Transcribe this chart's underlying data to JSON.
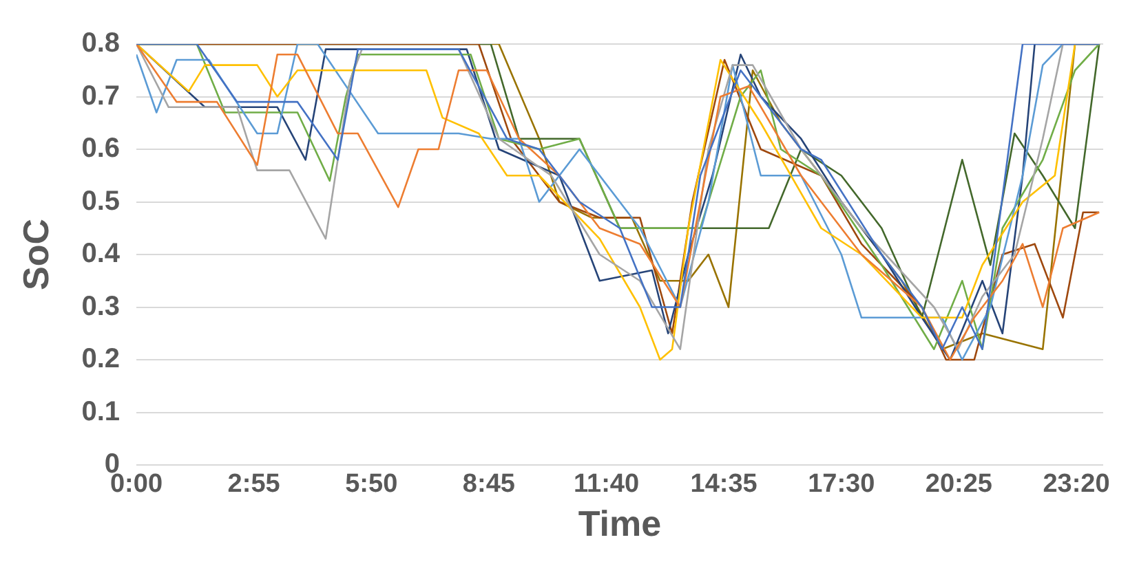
{
  "chart_data": {
    "type": "line",
    "xlabel": "Time",
    "ylabel": "SoC",
    "xlim": [
      0,
      24
    ],
    "xticks": [
      {
        "value": 0,
        "label": "0:00"
      },
      {
        "value": 2.9167,
        "label": "2:55"
      },
      {
        "value": 5.8333,
        "label": "5:50"
      },
      {
        "value": 8.75,
        "label": "8:45"
      },
      {
        "value": 11.6667,
        "label": "11:40"
      },
      {
        "value": 14.5833,
        "label": "14:35"
      },
      {
        "value": 17.5,
        "label": "17:30"
      },
      {
        "value": 20.4167,
        "label": "20:25"
      },
      {
        "value": 23.3333,
        "label": "23:20"
      }
    ],
    "ylim": [
      0,
      0.8
    ],
    "yticks": [
      0,
      0.1,
      0.2,
      0.3,
      0.4,
      0.5,
      0.6,
      0.7,
      0.8
    ],
    "grid": "y",
    "marker": "none",
    "line_style": "solid",
    "series": [
      {
        "color": "#4472c4",
        "x": [
          0,
          1.5,
          2.5,
          4,
          5,
          5.5,
          8,
          9.2,
          10,
          11,
          12,
          12.8,
          13.5,
          14,
          15,
          15.5,
          16.5,
          17,
          18.5,
          19.5,
          20,
          20.5,
          21,
          22,
          23.9
        ],
        "values": [
          0.8,
          0.8,
          0.69,
          0.69,
          0.58,
          0.79,
          0.79,
          0.62,
          0.6,
          0.5,
          0.45,
          0.3,
          0.3,
          0.55,
          0.75,
          0.7,
          0.6,
          0.58,
          0.4,
          0.3,
          0.22,
          0.3,
          0.22,
          0.8,
          0.8
        ]
      },
      {
        "color": "#ed7d31",
        "x": [
          0,
          1,
          2,
          3,
          3.5,
          4,
          5,
          5.5,
          6.5,
          7,
          7.5,
          8,
          8.7,
          9.5,
          10.5,
          11.5,
          12.5,
          13.5,
          14.5,
          15.2,
          16.5,
          18,
          19.5,
          20.2,
          20.8,
          21.5,
          22,
          22.5,
          23,
          23.9
        ],
        "values": [
          0.8,
          0.69,
          0.69,
          0.57,
          0.78,
          0.78,
          0.63,
          0.63,
          0.49,
          0.6,
          0.6,
          0.75,
          0.75,
          0.62,
          0.55,
          0.45,
          0.42,
          0.3,
          0.7,
          0.72,
          0.55,
          0.4,
          0.3,
          0.2,
          0.28,
          0.35,
          0.42,
          0.3,
          0.45,
          0.48
        ]
      },
      {
        "color": "#a5a5a5",
        "x": [
          0,
          0.8,
          2.5,
          3,
          3.8,
          4.7,
          5.3,
          5.6,
          8,
          9,
          10.3,
          11.5,
          12.5,
          13.5,
          14.2,
          14.8,
          15.3,
          16.5,
          18,
          19.8,
          20.4,
          21,
          21.8,
          22.5,
          23,
          23.9
        ],
        "values": [
          0.8,
          0.68,
          0.68,
          0.56,
          0.56,
          0.43,
          0.73,
          0.79,
          0.79,
          0.62,
          0.55,
          0.4,
          0.35,
          0.22,
          0.6,
          0.76,
          0.76,
          0.6,
          0.45,
          0.3,
          0.22,
          0.32,
          0.4,
          0.62,
          0.8,
          0.8
        ]
      },
      {
        "color": "#ffc000",
        "x": [
          0,
          1.3,
          1.7,
          3,
          3.5,
          4,
          7.2,
          7.6,
          8.5,
          9.2,
          10,
          11.5,
          12.5,
          13,
          13.3,
          13.7,
          14.5,
          15.5,
          17,
          18,
          19.5,
          20.5,
          21,
          22,
          22.8,
          23.3,
          23.9
        ],
        "values": [
          0.8,
          0.71,
          0.76,
          0.76,
          0.7,
          0.75,
          0.75,
          0.66,
          0.63,
          0.55,
          0.55,
          0.43,
          0.3,
          0.2,
          0.22,
          0.45,
          0.77,
          0.65,
          0.45,
          0.4,
          0.28,
          0.28,
          0.38,
          0.5,
          0.55,
          0.8,
          0.8
        ]
      },
      {
        "color": "#5b9bd5",
        "x": [
          0,
          0.5,
          1,
          1.8,
          3,
          3.5,
          4,
          4.5,
          6,
          8,
          8.8,
          9.5,
          10,
          11,
          12.5,
          13.5,
          14.2,
          14.8,
          15.5,
          16.5,
          17.5,
          18,
          20,
          20.5,
          21.2,
          22,
          22.5,
          23,
          23.9
        ],
        "values": [
          0.78,
          0.67,
          0.77,
          0.77,
          0.63,
          0.63,
          0.8,
          0.8,
          0.63,
          0.63,
          0.62,
          0.62,
          0.5,
          0.6,
          0.45,
          0.3,
          0.5,
          0.76,
          0.55,
          0.55,
          0.4,
          0.28,
          0.28,
          0.2,
          0.3,
          0.55,
          0.76,
          0.8,
          0.8
        ]
      },
      {
        "color": "#70ad47",
        "x": [
          0,
          1.5,
          2.2,
          4,
          4.8,
          5.2,
          5.5,
          8.3,
          9,
          10,
          11,
          12,
          14,
          15,
          15.5,
          16,
          17,
          18.5,
          19.8,
          20.5,
          21,
          21.5,
          22.5,
          23.3,
          23.9
        ],
        "values": [
          0.8,
          0.8,
          0.67,
          0.67,
          0.54,
          0.7,
          0.78,
          0.78,
          0.62,
          0.6,
          0.62,
          0.45,
          0.45,
          0.7,
          0.75,
          0.6,
          0.55,
          0.38,
          0.22,
          0.35,
          0.22,
          0.45,
          0.58,
          0.75,
          0.8
        ]
      },
      {
        "color": "#264478",
        "x": [
          0,
          1.7,
          3.5,
          4.2,
          4.7,
          8.2,
          9,
          10.5,
          11.5,
          12.8,
          13.2,
          13.7,
          14.3,
          15,
          15.5,
          16.5,
          17.5,
          18.5,
          19.5,
          20.2,
          21,
          21.5,
          22,
          22.3,
          23.9
        ],
        "values": [
          0.8,
          0.68,
          0.68,
          0.58,
          0.79,
          0.79,
          0.6,
          0.55,
          0.35,
          0.37,
          0.25,
          0.4,
          0.55,
          0.78,
          0.7,
          0.62,
          0.5,
          0.4,
          0.28,
          0.2,
          0.35,
          0.25,
          0.55,
          0.8,
          0.8
        ]
      },
      {
        "color": "#9e480e",
        "x": [
          0,
          8.5,
          9.3,
          10.5,
          11.5,
          12.5,
          13.3,
          13.8,
          14.6,
          15.5,
          17,
          18,
          19.5,
          20.1,
          20.8,
          21.5,
          22.3,
          23,
          23.5,
          23.9
        ],
        "values": [
          0.8,
          0.8,
          0.62,
          0.5,
          0.47,
          0.47,
          0.25,
          0.5,
          0.77,
          0.6,
          0.55,
          0.42,
          0.3,
          0.2,
          0.2,
          0.4,
          0.42,
          0.28,
          0.48,
          0.48
        ]
      },
      {
        "color": "#43682b",
        "x": [
          0,
          8.8,
          9.5,
          11,
          12,
          15.7,
          16.5,
          17.5,
          18.5,
          19.5,
          20.5,
          21.2,
          21.8,
          22.5,
          23.3,
          23.9
        ],
        "values": [
          0.8,
          0.8,
          0.62,
          0.62,
          0.45,
          0.45,
          0.6,
          0.55,
          0.45,
          0.28,
          0.58,
          0.38,
          0.63,
          0.55,
          0.45,
          0.8
        ]
      },
      {
        "color": "#997300",
        "x": [
          0,
          9,
          10,
          10.5,
          11.3,
          12.3,
          13,
          13.7,
          14.2,
          14.7,
          15.3,
          16,
          17.5,
          19,
          20,
          21,
          22.5,
          23.3,
          23.9
        ],
        "values": [
          0.8,
          0.8,
          0.62,
          0.5,
          0.47,
          0.47,
          0.35,
          0.35,
          0.4,
          0.3,
          0.75,
          0.65,
          0.5,
          0.35,
          0.22,
          0.25,
          0.22,
          0.8,
          0.8
        ]
      }
    ]
  }
}
